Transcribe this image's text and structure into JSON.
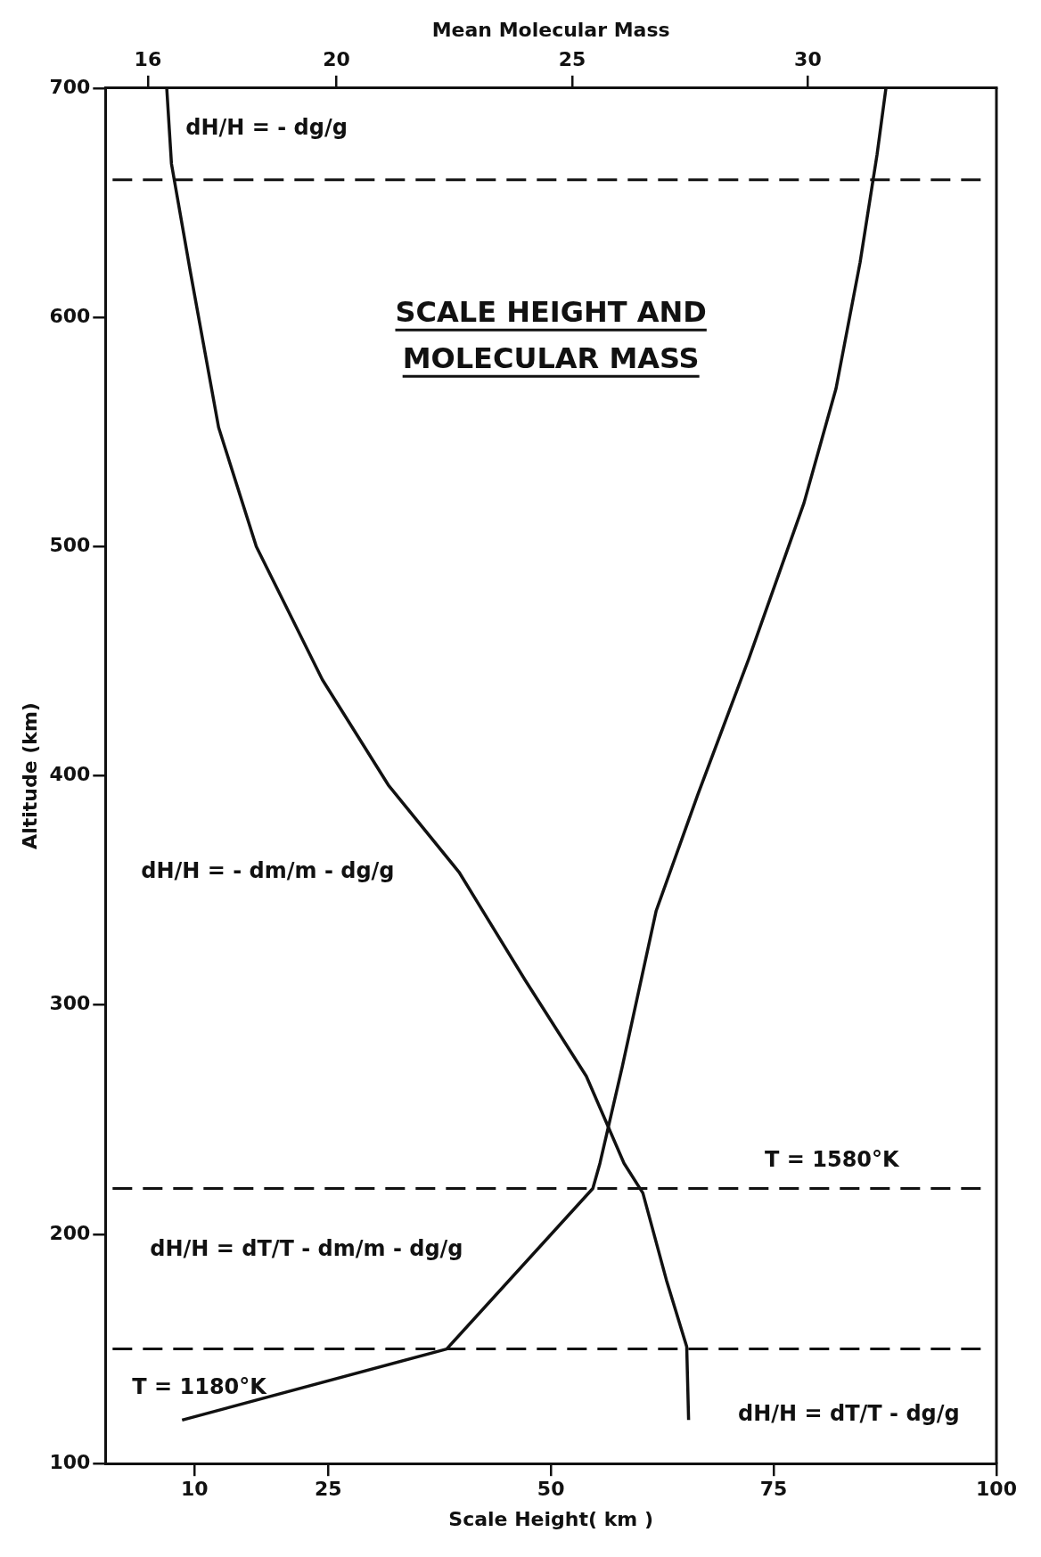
{
  "chart_data": {
    "type": "line",
    "title": "SCALE HEIGHT AND MOLECULAR MASS",
    "xlabel": "Scale Height( km )",
    "x2label": "Mean Molecular Mass",
    "ylabel": "Altitude (km)",
    "xlim": [
      0,
      100
    ],
    "xticks": [
      10,
      25,
      50,
      75,
      100
    ],
    "x2lim": [
      15.1,
      34.0
    ],
    "x2ticks": [
      16,
      20,
      25,
      30
    ],
    "ylim": [
      100,
      700
    ],
    "yticks": [
      100,
      200,
      300,
      400,
      500,
      600,
      700
    ],
    "grid": false,
    "legend": false,
    "marker": "none",
    "line_style": "solid",
    "series": [
      {
        "color": "#111111",
        "x": [
          8.6,
          38.3,
          54.7,
          55.5,
          58,
          61.8,
          66.5,
          72.2,
          78.4,
          82,
          84.7,
          86.6,
          87.6
        ],
        "values": [
          119,
          150,
          220,
          231,
          273,
          341,
          392,
          451,
          519,
          569,
          624,
          671,
          700
        ]
      },
      {
        "color": "#111111",
        "axis": "x2",
        "x": [
          27.47,
          27.43,
          27.0,
          26.5,
          26.1,
          25.3,
          24.0,
          22.6,
          21.1,
          19.7,
          18.3,
          17.5,
          16.9,
          16.5,
          16.4
        ],
        "values": [
          119,
          151,
          180,
          218,
          231,
          269,
          311,
          358,
          396,
          442,
          500,
          552,
          620,
          667,
          700
        ]
      }
    ],
    "ref_lines": [
      {
        "axis": "y",
        "value": 660,
        "line_style": "dashed",
        "color": "#111111"
      },
      {
        "axis": "y",
        "value": 220,
        "line_style": "dashed",
        "color": "#111111"
      },
      {
        "axis": "y",
        "value": 150,
        "line_style": "dashed",
        "color": "#111111"
      }
    ],
    "annotations": [
      "dH/H = - dg/g",
      "dH/H = - dm/m - dg/g",
      "dH/H = dT/T - dm/m - dg/g",
      "T = 1180°K",
      "dH/H = dT/T - dg/g",
      "T = 1580°K"
    ]
  }
}
